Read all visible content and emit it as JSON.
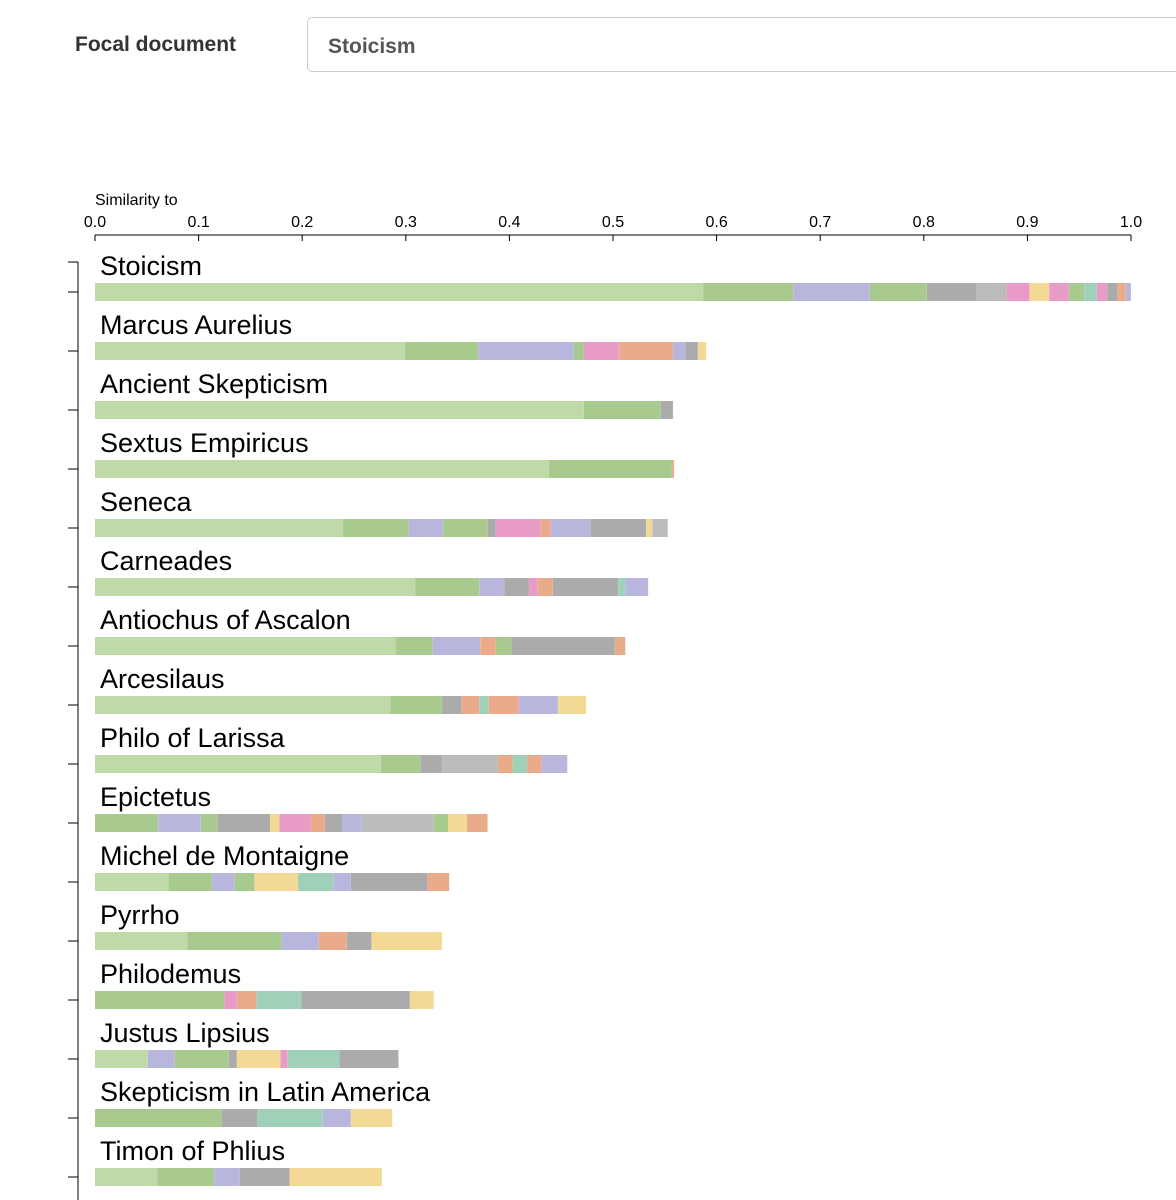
{
  "header": {
    "label": "Focal document",
    "input": "Stoicism"
  },
  "chart_data": {
    "type": "stacked-hbar",
    "axis_title": "Similarity to",
    "xlim": [
      0,
      1
    ],
    "xticks": [
      {
        "value": 0,
        "label": "0.0"
      },
      0.1,
      0.2,
      0.3,
      0.4,
      0.5,
      0.6,
      0.7,
      0.8,
      0.9,
      {
        "value": 1,
        "label": "1.0"
      }
    ],
    "categories": [
      "Stoicism",
      "Marcus Aurelius",
      "Ancient Skepticism",
      "Sextus Empiricus",
      "Seneca",
      "Carneades",
      "Antiochus of Ascalon",
      "Arcesilaus",
      "Philo of Larissa",
      "Epictetus",
      "Michel de Montaigne",
      "Pyrrho",
      "Philodemus",
      "Justus Lipsius",
      "Skepticism in Latin America",
      "Timon of Phlius"
    ],
    "values": [
      [
        0.587,
        0.087,
        0.074,
        0.055,
        0.048,
        0.029,
        0.022,
        0.019,
        0.019,
        0.015,
        0.012,
        0.01,
        0.01,
        0.008,
        0.005
      ],
      [
        0.299,
        0.071,
        0.092,
        0.01,
        0.034,
        0.052,
        0.012,
        0.012,
        0.008
      ],
      [
        0.472,
        0.074,
        0.012
      ],
      [
        0.438,
        0.119,
        0.002
      ],
      [
        0.239,
        0.064,
        0.033,
        0.043,
        0.008,
        0.043,
        0.01,
        0.038,
        0.054,
        0.006,
        0.015
      ],
      [
        0.309,
        0.062,
        0.024,
        0.024,
        0.008,
        0.015,
        0.063,
        0.007,
        0.022
      ],
      [
        0.29,
        0.036,
        0.046,
        0.015,
        0.015,
        0.1,
        0.01
      ],
      [
        0.285,
        0.05,
        0.019,
        0.017,
        0.009,
        0.029,
        0.038,
        0.027
      ],
      [
        0.276,
        0.038,
        0.021,
        0.054,
        0.014,
        0.014,
        0.014,
        0.025
      ],
      [
        0.061,
        0.041,
        0.016,
        0.051,
        0.009,
        0.03,
        0.014,
        0.017,
        0.018,
        0.07,
        0.014,
        0.018,
        0.02
      ],
      [
        0.071,
        0.042,
        0.022,
        0.019,
        0.042,
        0.034,
        0.017,
        0.074,
        0.021
      ],
      [
        0.089,
        0.091,
        0.036,
        0.027,
        0.024,
        0.068
      ],
      [
        0.125,
        0.012,
        0.019,
        0.043,
        0.105,
        0.023
      ],
      [
        0.051,
        0.026,
        0.052,
        0.008,
        0.042,
        0.007,
        0.05,
        0.057
      ],
      [
        0.122,
        0.035,
        0.063,
        0.027,
        0.04
      ],
      [
        0.06,
        0.055,
        0.025,
        0.048,
        0.089
      ]
    ],
    "colors": [
      [
        "#c0d9a8",
        "#a9ca8e",
        "#b9b6dd",
        "#a9ca8e",
        "#ababab",
        "#bcbcbc",
        "#e99bc8",
        "#f3d896",
        "#e99bc8",
        "#a9ca8e",
        "#9fd1b8",
        "#e99bc8",
        "#ababab",
        "#eaab8a",
        "#b9b6dd"
      ],
      [
        "#c0d9a8",
        "#a9ca8e",
        "#b9b6dd",
        "#a9ca8e",
        "#e99bc8",
        "#eaab8a",
        "#b9b6dd",
        "#ababab",
        "#f3d896"
      ],
      [
        "#c0d9a8",
        "#a9ca8e",
        "#ababab"
      ],
      [
        "#c0d9a8",
        "#a9ca8e",
        "#eaab8a"
      ],
      [
        "#c0d9a8",
        "#a9ca8e",
        "#b9b6dd",
        "#a9ca8e",
        "#ababab",
        "#e99bc8",
        "#eaab8a",
        "#b9b6dd",
        "#ababab",
        "#f3d896",
        "#bcbcbc"
      ],
      [
        "#c0d9a8",
        "#a9ca8e",
        "#b9b6dd",
        "#ababab",
        "#e99bc8",
        "#eaab8a",
        "#ababab",
        "#9fd1b8",
        "#b9b6dd"
      ],
      [
        "#c0d9a8",
        "#a9ca8e",
        "#b9b6dd",
        "#eaab8a",
        "#a9ca8e",
        "#ababab",
        "#eaab8a"
      ],
      [
        "#c0d9a8",
        "#a9ca8e",
        "#ababab",
        "#eaab8a",
        "#9fd1b8",
        "#eaab8a",
        "#b9b6dd",
        "#f3d896"
      ],
      [
        "#c0d9a8",
        "#a9ca8e",
        "#ababab",
        "#bcbcbc",
        "#eaab8a",
        "#9fd1b8",
        "#eaab8a",
        "#b9b6dd"
      ],
      [
        "#a9ca8e",
        "#b9b6dd",
        "#a9ca8e",
        "#ababab",
        "#f3d896",
        "#e99bc8",
        "#eaab8a",
        "#ababab",
        "#b9b6dd",
        "#bcbcbc",
        "#a9ca8e",
        "#f3d896",
        "#eaab8a"
      ],
      [
        "#c0d9a8",
        "#a9ca8e",
        "#b9b6dd",
        "#a9ca8e",
        "#f3d896",
        "#9fd1b8",
        "#b9b6dd",
        "#ababab",
        "#eaab8a"
      ],
      [
        "#c0d9a8",
        "#a9ca8e",
        "#b9b6dd",
        "#eaab8a",
        "#ababab",
        "#f3d896"
      ],
      [
        "#a9ca8e",
        "#e99bc8",
        "#eaab8a",
        "#9fd1b8",
        "#ababab",
        "#f3d896"
      ],
      [
        "#c0d9a8",
        "#b9b6dd",
        "#a9ca8e",
        "#ababab",
        "#f3d896",
        "#e99bc8",
        "#9fd1b8",
        "#ababab"
      ],
      [
        "#a9ca8e",
        "#ababab",
        "#9fd1b8",
        "#b9b6dd",
        "#f3d896"
      ],
      [
        "#c0d9a8",
        "#a9ca8e",
        "#b9b6dd",
        "#ababab",
        "#f3d896"
      ]
    ]
  }
}
